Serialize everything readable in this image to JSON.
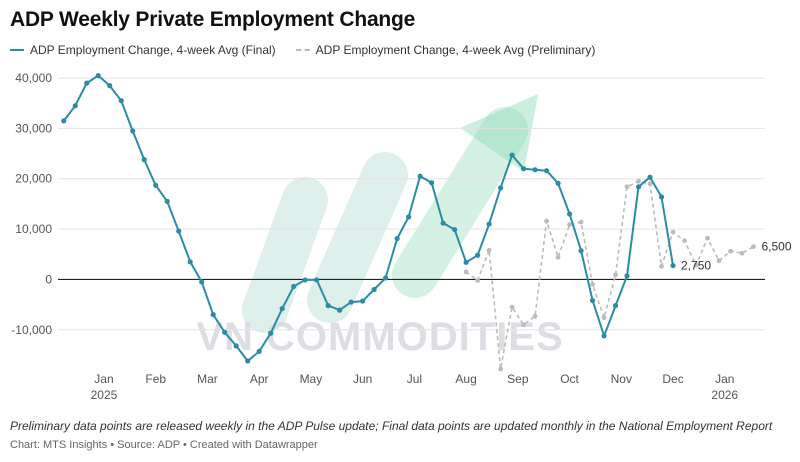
{
  "title": "ADP Weekly Private Employment Change",
  "legend": {
    "final_label": "ADP Employment Change, 4-week Avg (Final)",
    "prelim_label": "ADP Employment Change, 4-week Avg (Preliminary)"
  },
  "colors": {
    "final": "#2c8ca4",
    "prelim": "#bcbcbc",
    "arrow": "#8fd9b8",
    "zero_line": "#222222"
  },
  "note": "Preliminary data points are released weekly in the ADP Pulse update; Final data points are updated monthly in the National Employment Report",
  "source": "Chart: MTS Insights • Source: ADP • Created with Datawrapper",
  "watermark": "VN COMMODITIES",
  "chart_data": {
    "type": "line",
    "title": "ADP Weekly Private Employment Change",
    "x_unit": "week index (weekly, starting late Dec 2024)",
    "month_ticks": [
      {
        "label": "Jan",
        "sub": "2025",
        "x": 3.5
      },
      {
        "label": "Feb",
        "sub": "",
        "x": 8
      },
      {
        "label": "Mar",
        "sub": "",
        "x": 12.5
      },
      {
        "label": "Apr",
        "sub": "",
        "x": 17
      },
      {
        "label": "May",
        "sub": "",
        "x": 21.5
      },
      {
        "label": "Jun",
        "sub": "",
        "x": 26
      },
      {
        "label": "Jul",
        "sub": "",
        "x": 30.5
      },
      {
        "label": "Aug",
        "sub": "",
        "x": 35
      },
      {
        "label": "Sep",
        "sub": "",
        "x": 39.5
      },
      {
        "label": "Oct",
        "sub": "",
        "x": 44
      },
      {
        "label": "Nov",
        "sub": "",
        "x": 48.5
      },
      {
        "label": "Dec",
        "sub": "",
        "x": 53
      },
      {
        "label": "Jan",
        "sub": "2026",
        "x": 57.5
      }
    ],
    "ylim": [
      -17000,
      42000
    ],
    "yticks": [
      {
        "value": 40000,
        "label": "40,000"
      },
      {
        "value": 30000,
        "label": "30,000"
      },
      {
        "value": 20000,
        "label": "20,000"
      },
      {
        "value": 10000,
        "label": "10,000"
      },
      {
        "value": 0,
        "label": "0"
      },
      {
        "value": -10000,
        "label": "-10,000"
      }
    ],
    "grid": true,
    "series": [
      {
        "name": "ADP Employment Change, 4-week Avg (Final)",
        "x": [
          0,
          1,
          2,
          3,
          4,
          5,
          6,
          7,
          8,
          9,
          10,
          11,
          12,
          13,
          14,
          15,
          16,
          17,
          18,
          19,
          20,
          21,
          22,
          23,
          24,
          25,
          26,
          27,
          28,
          29,
          30,
          31,
          32,
          33,
          34,
          35,
          36,
          37,
          38,
          39,
          40,
          41,
          42,
          43,
          44,
          45,
          46,
          47,
          48,
          49,
          50,
          51,
          52,
          53
        ],
        "values": [
          31500,
          34500,
          39000,
          40500,
          38500,
          35500,
          29500,
          23800,
          18700,
          15500,
          9600,
          3500,
          -500,
          -7000,
          -10500,
          -13200,
          -16200,
          -14300,
          -10700,
          -5800,
          -1400,
          -100,
          -100,
          -5200,
          -6100,
          -4500,
          -4300,
          -2000,
          300,
          8100,
          12400,
          20500,
          19200,
          11200,
          9900,
          3400,
          4800,
          11000,
          18200,
          24700,
          22000,
          21800,
          21600,
          19100,
          13000,
          5700,
          -4200,
          -11200,
          -5200,
          700,
          18400,
          20300,
          16400,
          2750
        ]
      },
      {
        "name": "ADP Employment Change, 4-week Avg (Preliminary)",
        "x": [
          35,
          36,
          37,
          38,
          39,
          40,
          41,
          42,
          43,
          44,
          45,
          46,
          47,
          48,
          49,
          50,
          51,
          52,
          53,
          54,
          55,
          56,
          57,
          58,
          59,
          60
        ],
        "values": [
          1500,
          -200,
          5800,
          -17800,
          -5500,
          -9000,
          -7300,
          11600,
          4400,
          10900,
          11400,
          -1000,
          -7600,
          900,
          18400,
          19500,
          19000,
          2600,
          9400,
          7700,
          2800,
          8200,
          3700,
          5600,
          5200,
          6500
        ]
      }
    ],
    "annotations": [
      {
        "text": "2,750",
        "series": 0,
        "point": "last"
      },
      {
        "text": "6,500",
        "series": 1,
        "point": "last"
      }
    ]
  }
}
